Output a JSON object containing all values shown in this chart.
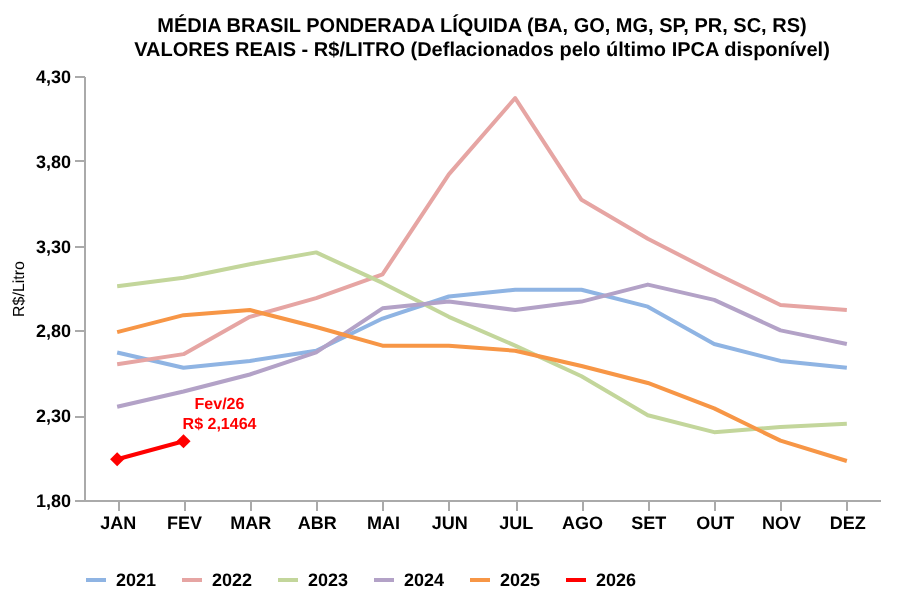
{
  "chart_data": {
    "type": "line",
    "title": "MÉDIA BRASIL PONDERADA LÍQUIDA (BA, GO, MG, SP, PR, SC, RS)\nVALORES REAIS - R$/LITRO (Deflacionados pelo último IPCA disponível)",
    "ylabel": "R$/Litro",
    "categories": [
      "JAN",
      "FEV",
      "MAR",
      "ABR",
      "MAI",
      "JUN",
      "JUL",
      "AGO",
      "SET",
      "OUT",
      "NOV",
      "DEZ"
    ],
    "series": [
      {
        "name": "2021",
        "color": "#8fb4e3",
        "values": [
          2.67,
          2.58,
          2.62,
          2.68,
          2.87,
          3.0,
          3.04,
          3.04,
          2.94,
          2.72,
          2.62,
          2.58
        ]
      },
      {
        "name": "2022",
        "color": "#e6a5a3",
        "values": [
          2.6,
          2.66,
          2.88,
          2.99,
          3.13,
          3.72,
          4.17,
          3.57,
          3.34,
          3.14,
          2.95,
          2.92
        ]
      },
      {
        "name": "2023",
        "color": "#c3d69b",
        "values": [
          3.06,
          3.11,
          3.19,
          3.26,
          3.08,
          2.88,
          2.71,
          2.53,
          2.3,
          2.2,
          2.23,
          2.25
        ]
      },
      {
        "name": "2024",
        "color": "#b3a2c7",
        "values": [
          2.35,
          2.44,
          2.54,
          2.67,
          2.93,
          2.97,
          2.92,
          2.97,
          3.07,
          2.98,
          2.8,
          2.72
        ]
      },
      {
        "name": "2025",
        "color": "#f79646",
        "values": [
          2.79,
          2.89,
          2.92,
          2.82,
          2.71,
          2.71,
          2.68,
          2.59,
          2.49,
          2.34,
          2.15,
          2.03
        ]
      },
      {
        "name": "2026",
        "color": "#ff0000",
        "marker": "diamond",
        "values": [
          2.04,
          2.1464,
          null,
          null,
          null,
          null,
          null,
          null,
          null,
          null,
          null,
          null
        ]
      }
    ],
    "ylim": [
      1.8,
      4.3
    ],
    "yticks": [
      {
        "value": 1.8,
        "label": "1,80"
      },
      {
        "value": 2.3,
        "label": "2,30"
      },
      {
        "value": 2.8,
        "label": "2,80"
      },
      {
        "value": 3.3,
        "label": "3,30"
      },
      {
        "value": 3.8,
        "label": "3,80"
      },
      {
        "value": 4.3,
        "label": "4,30"
      }
    ],
    "grid": false,
    "legend": "bottom",
    "annotations": [
      {
        "text": "Fev/26\nR$ 2,1464",
        "x": "FEV",
        "y": 2.1464
      }
    ]
  }
}
